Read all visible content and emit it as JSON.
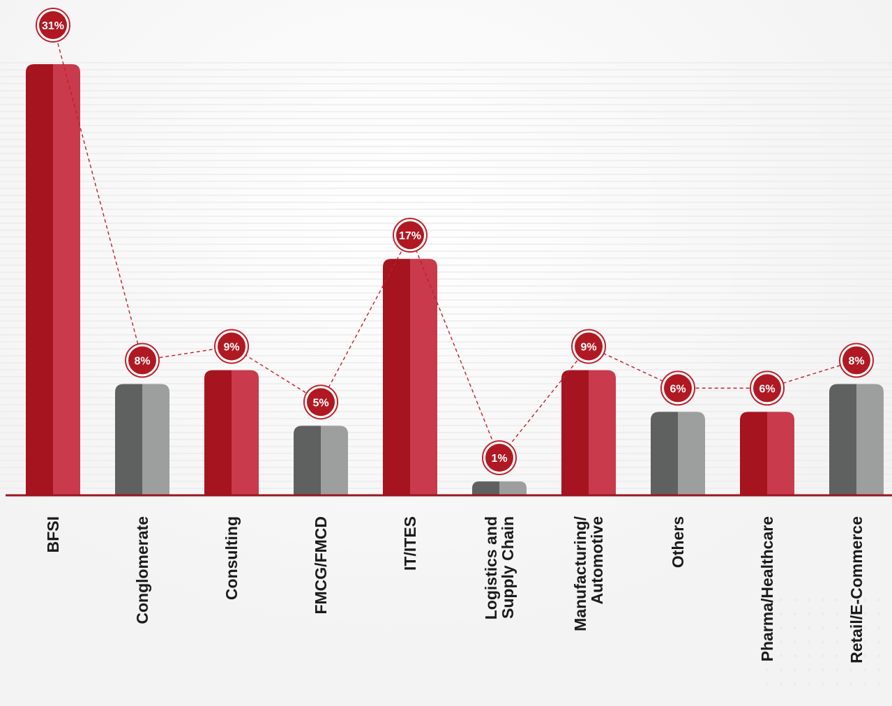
{
  "chart_data": {
    "type": "bar",
    "title": "",
    "xlabel": "",
    "ylabel": "",
    "ylim": [
      0,
      31
    ],
    "grid": true,
    "legend": "none",
    "categories": [
      "BFSI",
      "Conglomerate",
      "Consulting",
      "FMCG/FMCD",
      "IT/ITES",
      "Logistics and Supply Chain",
      "Manufacturing/ Automotive",
      "Others",
      "Pharma/Healthcare",
      "Retail/E-Commerce"
    ],
    "label_lines": [
      [
        "BFSI"
      ],
      [
        "Conglomerate"
      ],
      [
        "Consulting"
      ],
      [
        "FMCG/FMCD"
      ],
      [
        "IT/ITES"
      ],
      [
        "Logistics and",
        "Supply Chain"
      ],
      [
        "Manufacturing/",
        "Automotive"
      ],
      [
        "Others"
      ],
      [
        "Pharma/Healthcare"
      ],
      [
        "Retail/E-Commerce"
      ]
    ],
    "values": [
      31,
      8,
      9,
      5,
      17,
      1,
      9,
      6,
      6,
      8
    ],
    "value_labels": [
      "31%",
      "8%",
      "9%",
      "5%",
      "17%",
      "1%",
      "9%",
      "6%",
      "6%",
      "8%"
    ],
    "bar_colors": [
      "red",
      "gray",
      "red",
      "gray",
      "red",
      "gray",
      "red",
      "gray",
      "red",
      "gray"
    ]
  },
  "colors": {
    "red_dark": "#a5141f",
    "red_light": "#c83a4c",
    "gray_dark": "#5f6060",
    "gray_light": "#9d9e9e",
    "badge_fill": "#b01822",
    "badge_ring": "#c0202a",
    "connector": "#c0202a",
    "baseline": "#9b1620",
    "label": "#1a1a1a",
    "gridline": "#ececec"
  }
}
